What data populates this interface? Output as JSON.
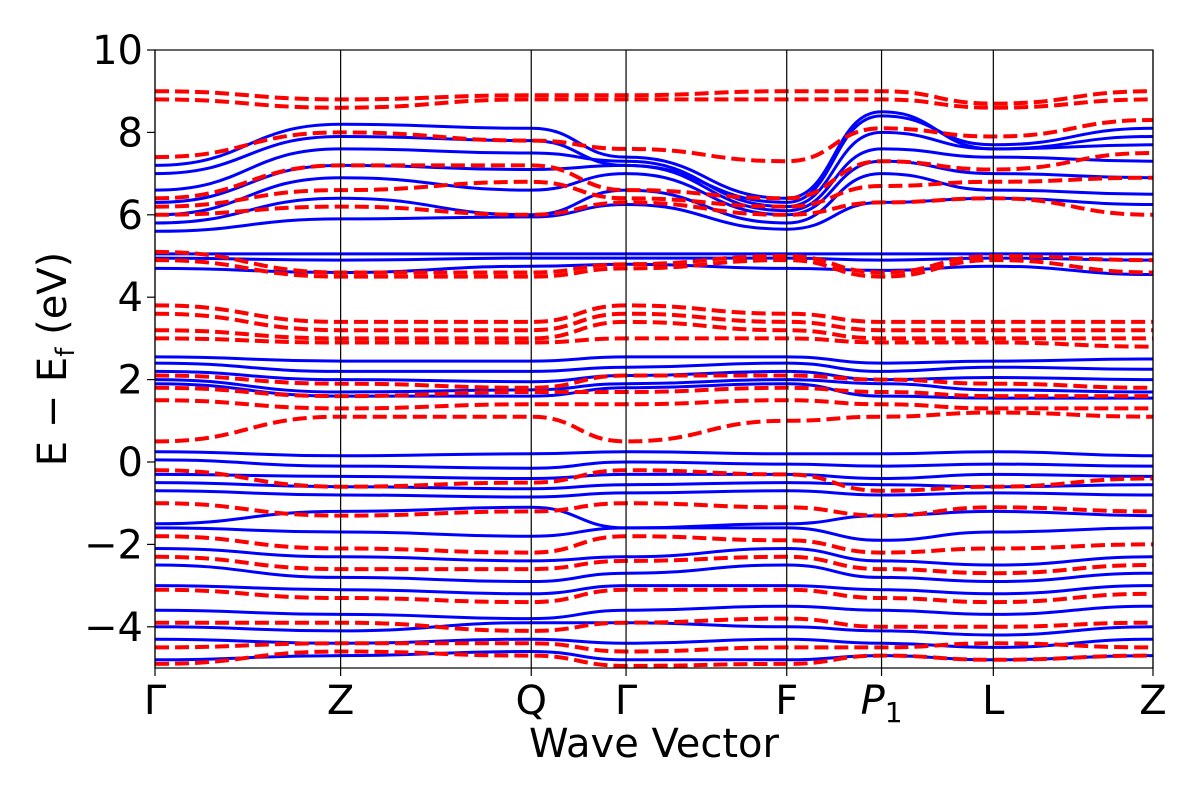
{
  "chart_data": {
    "type": "line",
    "xlabel": "Wave Vector",
    "ylabel_main": "E − E",
    "ylabel_sub": "f",
    "ylabel_unit": " (eV)",
    "ylim": [
      -5,
      10
    ],
    "yticks": [
      -4,
      -2,
      0,
      2,
      4,
      6,
      8,
      10
    ],
    "ytick_labels": [
      "−4",
      "−2",
      "0",
      "2",
      "4",
      "6",
      "8",
      "10"
    ],
    "high_symmetry_points": [
      {
        "label": "Γ",
        "k": 0.0
      },
      {
        "label": "Z",
        "k": 0.186
      },
      {
        "label": "Q",
        "k": 0.377
      },
      {
        "label": "Γ",
        "k": 0.472
      },
      {
        "label": "F",
        "k": 0.633
      },
      {
        "label": "P",
        "sub": "1",
        "italic": true,
        "k": 0.728
      },
      {
        "label": "L",
        "k": 0.84
      },
      {
        "label": "Z",
        "k": 1.0
      }
    ],
    "colors": {
      "solid": "#0000ff",
      "dashed": "#ff0000"
    },
    "series": [
      {
        "style": "solid",
        "values": [
          5.6,
          5.9,
          5.95,
          6.25,
          5.65,
          6.3,
          6.4,
          6.25
        ]
      },
      {
        "style": "solid",
        "values": [
          5.8,
          6.4,
          6.0,
          6.6,
          5.8,
          7.0,
          6.6,
          6.5
        ]
      },
      {
        "style": "solid",
        "values": [
          6.0,
          6.9,
          6.6,
          7.0,
          6.0,
          7.3,
          7.0,
          6.9
        ]
      },
      {
        "style": "solid",
        "values": [
          6.3,
          7.2,
          7.1,
          7.2,
          6.1,
          7.6,
          7.4,
          7.3
        ]
      },
      {
        "style": "solid",
        "values": [
          6.6,
          7.6,
          7.5,
          7.3,
          6.2,
          8.0,
          7.6,
          7.7
        ]
      },
      {
        "style": "solid",
        "values": [
          7.0,
          7.9,
          7.8,
          7.2,
          6.3,
          8.4,
          7.7,
          8.1
        ]
      },
      {
        "style": "solid",
        "values": [
          7.2,
          8.2,
          8.1,
          7.4,
          6.4,
          8.5,
          7.6,
          7.9
        ]
      },
      {
        "style": "solid",
        "values": [
          5.05,
          5.05,
          5.05,
          5.05,
          5.05,
          5.05,
          5.05,
          5.05
        ]
      },
      {
        "style": "solid",
        "values": [
          4.95,
          4.9,
          4.95,
          4.95,
          4.95,
          4.9,
          4.95,
          4.9
        ]
      },
      {
        "style": "solid",
        "values": [
          4.7,
          4.6,
          4.75,
          4.8,
          4.7,
          4.65,
          4.75,
          4.55
        ]
      },
      {
        "style": "solid",
        "values": [
          2.55,
          2.45,
          2.45,
          2.55,
          2.55,
          2.4,
          2.45,
          2.5
        ]
      },
      {
        "style": "solid",
        "values": [
          2.4,
          2.2,
          2.2,
          2.3,
          2.4,
          2.2,
          2.3,
          2.25
        ]
      },
      {
        "style": "solid",
        "values": [
          2.2,
          2.0,
          1.95,
          2.1,
          2.2,
          2.0,
          2.05,
          2.0
        ]
      },
      {
        "style": "solid",
        "values": [
          2.0,
          1.7,
          1.75,
          1.9,
          2.0,
          1.9,
          1.75,
          1.7
        ]
      },
      {
        "style": "solid",
        "values": [
          1.9,
          1.6,
          1.6,
          1.8,
          1.9,
          1.6,
          1.55,
          1.55
        ]
      },
      {
        "style": "solid",
        "values": [
          0.25,
          0.15,
          0.2,
          0.25,
          0.2,
          0.2,
          0.25,
          0.15
        ]
      },
      {
        "style": "solid",
        "values": [
          0.05,
          -0.1,
          -0.15,
          0.0,
          -0.05,
          -0.1,
          -0.05,
          -0.1
        ]
      },
      {
        "style": "solid",
        "values": [
          -0.3,
          -0.35,
          -0.4,
          -0.3,
          -0.3,
          -0.4,
          -0.3,
          -0.35
        ]
      },
      {
        "style": "solid",
        "values": [
          -0.5,
          -0.6,
          -0.65,
          -0.55,
          -0.5,
          -0.55,
          -0.6,
          -0.55
        ]
      },
      {
        "style": "solid",
        "values": [
          -0.7,
          -0.8,
          -0.85,
          -0.75,
          -0.7,
          -0.8,
          -0.75,
          -0.8
        ]
      },
      {
        "style": "solid",
        "values": [
          -1.5,
          -1.2,
          -1.1,
          -1.6,
          -1.5,
          -1.3,
          -1.2,
          -1.3
        ]
      },
      {
        "style": "solid",
        "values": [
          -1.6,
          -1.7,
          -1.8,
          -1.6,
          -1.6,
          -1.9,
          -1.7,
          -1.6
        ]
      },
      {
        "style": "solid",
        "values": [
          -2.1,
          -2.3,
          -2.4,
          -2.3,
          -2.1,
          -2.4,
          -2.5,
          -2.3
        ]
      },
      {
        "style": "solid",
        "values": [
          -2.5,
          -2.8,
          -2.9,
          -2.7,
          -2.5,
          -2.8,
          -2.9,
          -2.7
        ]
      },
      {
        "style": "solid",
        "values": [
          -3.0,
          -3.1,
          -3.2,
          -3.0,
          -3.0,
          -3.1,
          -3.2,
          -3.0
        ]
      },
      {
        "style": "solid",
        "values": [
          -3.6,
          -3.7,
          -3.8,
          -3.6,
          -3.5,
          -3.6,
          -3.7,
          -3.5
        ]
      },
      {
        "style": "solid",
        "values": [
          -4.0,
          -4.1,
          -3.9,
          -3.9,
          -4.0,
          -4.1,
          -4.2,
          -4.0
        ]
      },
      {
        "style": "solid",
        "values": [
          -4.3,
          -4.4,
          -4.3,
          -4.4,
          -4.3,
          -4.4,
          -4.5,
          -4.3
        ]
      },
      {
        "style": "solid",
        "values": [
          -4.8,
          -4.7,
          -4.6,
          -4.8,
          -4.8,
          -4.7,
          -4.8,
          -4.7
        ]
      },
      {
        "style": "dashed",
        "values": [
          9.0,
          8.8,
          8.9,
          8.9,
          9.0,
          9.0,
          8.7,
          9.0
        ]
      },
      {
        "style": "dashed",
        "values": [
          8.8,
          8.6,
          8.8,
          8.8,
          8.8,
          8.8,
          8.6,
          8.8
        ]
      },
      {
        "style": "dashed",
        "values": [
          7.4,
          8.0,
          7.8,
          7.6,
          7.3,
          8.1,
          7.9,
          8.3
        ]
      },
      {
        "style": "dashed",
        "values": [
          6.4,
          7.2,
          7.2,
          6.6,
          6.4,
          7.3,
          7.1,
          7.5
        ]
      },
      {
        "style": "dashed",
        "values": [
          6.2,
          6.6,
          6.8,
          6.4,
          6.2,
          6.7,
          6.8,
          6.9
        ]
      },
      {
        "style": "dashed",
        "values": [
          6.0,
          6.2,
          6.0,
          6.3,
          6.0,
          6.3,
          6.4,
          6.0
        ]
      },
      {
        "style": "dashed",
        "values": [
          5.1,
          4.6,
          4.6,
          4.8,
          5.0,
          4.6,
          5.0,
          4.9
        ]
      },
      {
        "style": "dashed",
        "values": [
          4.9,
          4.5,
          4.5,
          4.7,
          4.9,
          4.5,
          4.9,
          4.6
        ]
      },
      {
        "style": "dashed",
        "values": [
          3.8,
          3.4,
          3.4,
          3.8,
          3.6,
          3.4,
          3.4,
          3.4
        ]
      },
      {
        "style": "dashed",
        "values": [
          3.6,
          3.2,
          3.2,
          3.6,
          3.4,
          3.2,
          3.2,
          3.2
        ]
      },
      {
        "style": "dashed",
        "values": [
          3.2,
          3.0,
          3.0,
          3.4,
          3.2,
          3.0,
          3.0,
          3.0
        ]
      },
      {
        "style": "dashed",
        "values": [
          3.0,
          2.9,
          2.9,
          3.0,
          3.0,
          2.9,
          2.9,
          2.8
        ]
      },
      {
        "style": "dashed",
        "values": [
          2.1,
          1.9,
          1.8,
          2.1,
          2.1,
          2.0,
          1.9,
          1.8
        ]
      },
      {
        "style": "dashed",
        "values": [
          1.8,
          1.6,
          1.7,
          1.7,
          1.8,
          1.7,
          1.6,
          1.6
        ]
      },
      {
        "style": "dashed",
        "values": [
          1.5,
          1.3,
          1.4,
          1.4,
          1.5,
          1.4,
          1.3,
          1.3
        ]
      },
      {
        "style": "dashed",
        "values": [
          0.5,
          1.1,
          1.1,
          0.5,
          1.0,
          1.1,
          1.2,
          1.1
        ]
      },
      {
        "style": "dashed",
        "values": [
          -0.2,
          -0.6,
          -0.5,
          -0.2,
          -0.3,
          -0.7,
          -0.6,
          -0.4
        ]
      },
      {
        "style": "dashed",
        "values": [
          -1.0,
          -1.3,
          -1.2,
          -1.0,
          -1.1,
          -1.3,
          -1.1,
          -1.2
        ]
      },
      {
        "style": "dashed",
        "values": [
          -1.8,
          -2.1,
          -2.2,
          -1.8,
          -1.9,
          -2.2,
          -2.1,
          -2.0
        ]
      },
      {
        "style": "dashed",
        "values": [
          -2.3,
          -2.6,
          -2.6,
          -2.4,
          -2.3,
          -2.6,
          -2.7,
          -2.5
        ]
      },
      {
        "style": "dashed",
        "values": [
          -3.1,
          -3.3,
          -3.4,
          -3.1,
          -3.1,
          -3.3,
          -3.4,
          -3.2
        ]
      },
      {
        "style": "dashed",
        "values": [
          -3.9,
          -3.9,
          -4.1,
          -3.9,
          -3.8,
          -4.0,
          -4.0,
          -3.9
        ]
      },
      {
        "style": "dashed",
        "values": [
          -4.5,
          -4.4,
          -4.4,
          -4.6,
          -4.5,
          -4.5,
          -4.4,
          -4.5
        ]
      },
      {
        "style": "dashed",
        "values": [
          -4.9,
          -4.6,
          -4.7,
          -4.95,
          -4.9,
          -4.7,
          -4.8,
          -4.7
        ]
      }
    ]
  }
}
